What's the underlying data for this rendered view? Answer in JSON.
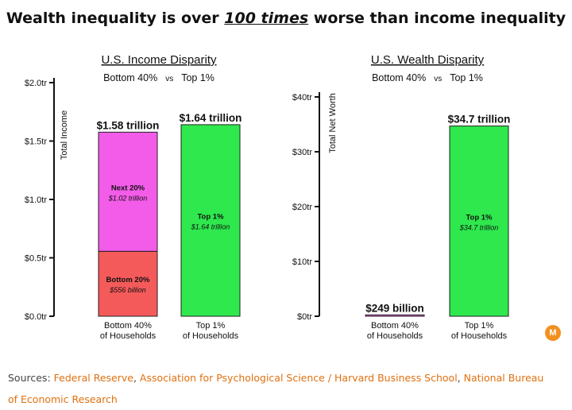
{
  "headline": {
    "before": "Wealth inequality is over ",
    "emphasis": "100 times",
    "after": " worse than income inequality"
  },
  "chart_data": [
    {
      "type": "bar",
      "title": "U.S. Income Disparity",
      "subtitle_left": "Bottom 40%",
      "subtitle_vs": "vs",
      "subtitle_right": "Top 1%",
      "ylabel": "Total Income",
      "ylim": [
        0,
        2.0
      ],
      "yticks": [
        {
          "value": 0.0,
          "label": "$0.0tr"
        },
        {
          "value": 0.5,
          "label": "$0.5tr"
        },
        {
          "value": 1.0,
          "label": "$1.0tr"
        },
        {
          "value": 1.5,
          "label": "$1.5tr"
        },
        {
          "value": 2.0,
          "label": "$2.0tr"
        }
      ],
      "bars": [
        {
          "category_line1": "Bottom 40%",
          "category_line2": "of Households",
          "total_label": "$1.58 trillion",
          "segments": [
            {
              "name": "Bottom 20%",
              "value_label": "$556 billion",
              "value": 0.556,
              "color": "#f55a5a"
            },
            {
              "name": "Next 20%",
              "value_label": "$1.02 trillion",
              "value": 1.02,
              "color": "#f25ce8"
            }
          ]
        },
        {
          "category_line1": "Top 1%",
          "category_line2": "of Households",
          "total_label": "$1.64 trillion",
          "segments": [
            {
              "name": "Top 1%",
              "value_label": "$1.64 trillion",
              "value": 1.64,
              "color": "#2ee84d"
            }
          ]
        }
      ]
    },
    {
      "type": "bar",
      "title": "U.S. Wealth Disparity",
      "subtitle_left": "Bottom 40%",
      "subtitle_vs": "vs",
      "subtitle_right": "Top 1%",
      "ylabel": "Total Net Worth",
      "ylim": [
        0,
        40
      ],
      "yticks": [
        {
          "value": 0,
          "label": "$0tr"
        },
        {
          "value": 10,
          "label": "$10tr"
        },
        {
          "value": 20,
          "label": "$20tr"
        },
        {
          "value": 30,
          "label": "$30tr"
        },
        {
          "value": 40,
          "label": "$40tr"
        }
      ],
      "bars": [
        {
          "category_line1": "Bottom 40%",
          "category_line2": "of Households",
          "total_label": "$249 billion",
          "segments": [
            {
              "name": "",
              "value_label": "",
              "value": 0.249,
              "color": "#f25ce8"
            }
          ]
        },
        {
          "category_line1": "Top 1%",
          "category_line2": "of Households",
          "total_label": "$34.7 trillion",
          "segments": [
            {
              "name": "Top 1%",
              "value_label": "$34.7 trillion",
              "value": 34.7,
              "color": "#2ee84d"
            }
          ]
        }
      ]
    }
  ],
  "sources": {
    "prefix": "Sources: ",
    "links": [
      "Federal Reserve",
      "Association for Psychological Science / Harvard Business School",
      "National Bureau of Economic Research"
    ],
    "separator": ", "
  },
  "logo": {
    "icon": "m-circle-logo-icon",
    "letter": "M",
    "color": "#f39020"
  }
}
